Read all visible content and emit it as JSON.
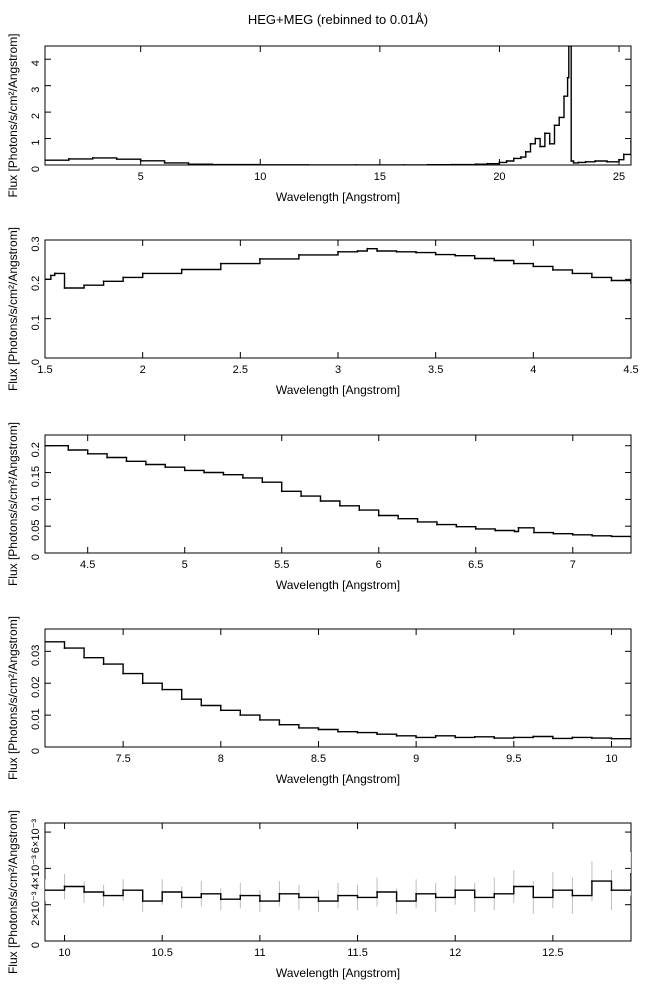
{
  "figure_title": "HEG+MEG (rebinned to 0.01Å)",
  "chart_data": [
    {
      "type": "line",
      "title": "",
      "xlabel": "Wavelength [Angstrom]",
      "ylabel": "Flux [Photons/s/cm²/Angstrom]",
      "xlim": [
        1.0,
        25.5
      ],
      "ylim": [
        0,
        4.5
      ],
      "xticks": [
        5,
        10,
        15,
        20,
        25
      ],
      "xtick_labels": [
        "5",
        "10",
        "15",
        "20",
        "25"
      ],
      "yticks": [
        0,
        1,
        2,
        3,
        4
      ],
      "ytick_labels": [
        "0",
        "1",
        "2",
        "3",
        "4"
      ],
      "series": [
        {
          "x": [
            1.0,
            2.0,
            3.0,
            4.0,
            5.0,
            6.0,
            7.0,
            8.0,
            10.0,
            12.0,
            14.0,
            16.0,
            17.0,
            18.0,
            19.0,
            19.5,
            20.0,
            20.3,
            20.6,
            20.9,
            21.1,
            21.3,
            21.5,
            21.7,
            21.9,
            22.1,
            22.3,
            22.5,
            22.7,
            22.85,
            22.9,
            23.0,
            23.1,
            23.3,
            23.6,
            24.0,
            24.5,
            25.0,
            25.2,
            25.5
          ],
          "y": [
            0.18,
            0.23,
            0.27,
            0.22,
            0.16,
            0.08,
            0.03,
            0.015,
            0.006,
            0.004,
            0.003,
            0.005,
            0.01,
            0.015,
            0.03,
            0.05,
            0.1,
            0.15,
            0.25,
            0.3,
            0.5,
            0.8,
            1.0,
            0.7,
            1.2,
            0.8,
            1.5,
            1.8,
            2.6,
            3.3,
            4.5,
            0.15,
            0.08,
            0.1,
            0.12,
            0.15,
            0.12,
            0.2,
            0.4,
            0.9
          ],
          "errors": []
        }
      ]
    },
    {
      "type": "line",
      "title": "",
      "xlabel": "Wavelength [Angstrom]",
      "ylabel": "Flux [Photons/s/cm²/Angstrom]",
      "xlim": [
        1.5,
        4.5
      ],
      "ylim": [
        0,
        0.3
      ],
      "xticks": [
        1.5,
        2,
        2.5,
        3,
        3.5,
        4,
        4.5
      ],
      "xtick_labels": [
        "1.5",
        "2",
        "2.5",
        "3",
        "3.5",
        "4",
        "4.5"
      ],
      "yticks": [
        0,
        0.1,
        0.2,
        0.3
      ],
      "ytick_labels": [
        "0",
        "0.1",
        "0.2",
        "0.3"
      ],
      "series": [
        {
          "x": [
            1.5,
            1.53,
            1.55,
            1.6,
            1.7,
            1.8,
            1.9,
            2.0,
            2.2,
            2.4,
            2.6,
            2.8,
            3.0,
            3.1,
            3.15,
            3.2,
            3.3,
            3.4,
            3.5,
            3.6,
            3.7,
            3.8,
            3.9,
            4.0,
            4.1,
            4.2,
            4.3,
            4.4,
            4.5
          ],
          "y": [
            0.2,
            0.21,
            0.215,
            0.178,
            0.185,
            0.195,
            0.205,
            0.215,
            0.225,
            0.24,
            0.252,
            0.262,
            0.27,
            0.272,
            0.278,
            0.272,
            0.27,
            0.268,
            0.263,
            0.26,
            0.253,
            0.248,
            0.24,
            0.233,
            0.224,
            0.215,
            0.205,
            0.197,
            0.19
          ],
          "errors": []
        }
      ]
    },
    {
      "type": "line",
      "title": "",
      "xlabel": "Wavelength [Angstrom]",
      "ylabel": "Flux [Photons/s/cm²/Angstrom]",
      "xlim": [
        4.28,
        7.3
      ],
      "ylim": [
        0,
        0.22
      ],
      "xticks": [
        4.5,
        5,
        5.5,
        6,
        6.5,
        7
      ],
      "xtick_labels": [
        "4.5",
        "5",
        "5.5",
        "6",
        "6.5",
        "7"
      ],
      "yticks": [
        0,
        0.05,
        0.1,
        0.15,
        0.2
      ],
      "ytick_labels": [
        "0",
        "0.05",
        "0.1",
        "0.15",
        "0.2"
      ],
      "series": [
        {
          "x": [
            4.28,
            4.4,
            4.5,
            4.6,
            4.7,
            4.8,
            4.9,
            5.0,
            5.1,
            5.2,
            5.3,
            5.4,
            5.5,
            5.6,
            5.7,
            5.8,
            5.9,
            6.0,
            6.1,
            6.2,
            6.3,
            6.4,
            6.5,
            6.6,
            6.7,
            6.72,
            6.8,
            6.9,
            7.0,
            7.1,
            7.2,
            7.3
          ],
          "y": [
            0.2,
            0.192,
            0.185,
            0.178,
            0.171,
            0.165,
            0.16,
            0.154,
            0.15,
            0.146,
            0.14,
            0.132,
            0.115,
            0.106,
            0.097,
            0.088,
            0.08,
            0.07,
            0.064,
            0.058,
            0.053,
            0.049,
            0.045,
            0.042,
            0.04,
            0.047,
            0.038,
            0.036,
            0.034,
            0.032,
            0.031,
            0.03
          ],
          "errors": []
        }
      ]
    },
    {
      "type": "line",
      "title": "",
      "xlabel": "Wavelength [Angstrom]",
      "ylabel": "Flux [Photons/s/cm²/Angstrom]",
      "xlim": [
        7.1,
        10.1
      ],
      "ylim": [
        0,
        0.037
      ],
      "xticks": [
        7.5,
        8,
        8.5,
        9,
        9.5,
        10
      ],
      "xtick_labels": [
        "7.5",
        "8",
        "8.5",
        "9",
        "9.5",
        "10"
      ],
      "yticks": [
        0,
        0.01,
        0.02,
        0.03
      ],
      "ytick_labels": [
        "0",
        "0.01",
        "0.02",
        "0.03"
      ],
      "series": [
        {
          "x": [
            7.1,
            7.2,
            7.3,
            7.4,
            7.5,
            7.6,
            7.7,
            7.8,
            7.9,
            8.0,
            8.1,
            8.2,
            8.3,
            8.4,
            8.5,
            8.6,
            8.7,
            8.8,
            8.9,
            9.0,
            9.1,
            9.2,
            9.3,
            9.4,
            9.5,
            9.6,
            9.7,
            9.8,
            9.9,
            10.0,
            10.1
          ],
          "y": [
            0.033,
            0.031,
            0.028,
            0.026,
            0.023,
            0.02,
            0.018,
            0.015,
            0.013,
            0.0115,
            0.01,
            0.0085,
            0.007,
            0.006,
            0.0055,
            0.0048,
            0.0045,
            0.004,
            0.0035,
            0.003,
            0.0035,
            0.003,
            0.0032,
            0.0028,
            0.003,
            0.0033,
            0.0027,
            0.003,
            0.0028,
            0.0026,
            0.0025
          ],
          "errors": []
        }
      ]
    },
    {
      "type": "line",
      "title": "",
      "xlabel": "Wavelength [Angstrom]",
      "ylabel": "Flux [Photons/s/cm²/Angstrom]",
      "xlim": [
        9.9,
        12.9
      ],
      "ylim": [
        0,
        0.0065
      ],
      "xticks": [
        10,
        10.5,
        11,
        11.5,
        12,
        12.5
      ],
      "xtick_labels": [
        "10",
        "10.5",
        "11",
        "11.5",
        "12",
        "12.5"
      ],
      "yticks": [
        0,
        0.002,
        0.004,
        0.006
      ],
      "ytick_labels": [
        "0",
        "2×10⁻³",
        "4×10⁻³",
        "6×10⁻³"
      ],
      "series": [
        {
          "x": [
            9.9,
            10.0,
            10.1,
            10.2,
            10.3,
            10.4,
            10.5,
            10.6,
            10.7,
            10.8,
            10.9,
            11.0,
            11.1,
            11.2,
            11.3,
            11.4,
            11.5,
            11.6,
            11.7,
            11.8,
            11.9,
            12.0,
            12.1,
            12.2,
            12.3,
            12.4,
            12.5,
            12.6,
            12.7,
            12.8,
            12.9
          ],
          "y": [
            0.0028,
            0.003,
            0.0027,
            0.0025,
            0.0028,
            0.0022,
            0.0027,
            0.0024,
            0.0026,
            0.0023,
            0.0025,
            0.0022,
            0.0026,
            0.0024,
            0.0022,
            0.0025,
            0.0024,
            0.0027,
            0.0022,
            0.0026,
            0.0024,
            0.0028,
            0.0024,
            0.0026,
            0.003,
            0.0024,
            0.0028,
            0.0025,
            0.0033,
            0.0028,
            0.0037
          ],
          "errors": [
            0.0006,
            0.0007,
            0.0006,
            0.0006,
            0.0006,
            0.0006,
            0.0007,
            0.0006,
            0.0007,
            0.0006,
            0.0007,
            0.0006,
            0.0007,
            0.0007,
            0.0006,
            0.0007,
            0.0007,
            0.0008,
            0.0007,
            0.0008,
            0.0008,
            0.0008,
            0.0008,
            0.0009,
            0.0009,
            0.0009,
            0.001,
            0.001,
            0.0011,
            0.0011,
            0.0012
          ]
        }
      ]
    }
  ]
}
